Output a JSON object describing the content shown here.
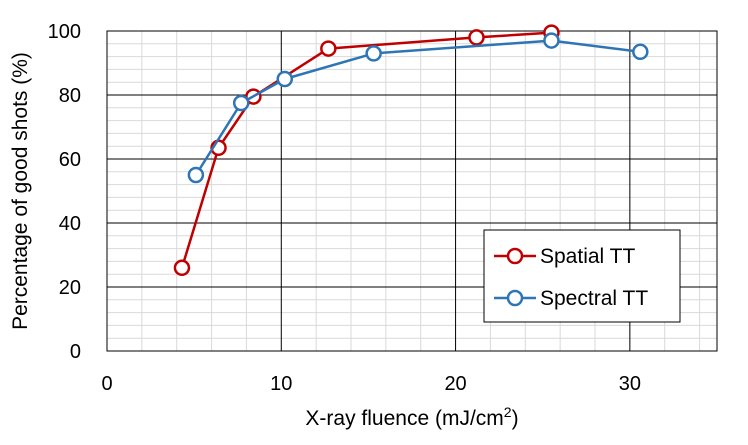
{
  "chart_data": {
    "type": "line",
    "xlabel": "X-ray fluence (mJ/cm2)",
    "xlabel_parts": {
      "main": "X-ray fluence (mJ/cm",
      "sup": "2",
      "end": ")"
    },
    "ylabel": "Percentage of good shots (%)",
    "xlim": [
      0,
      35
    ],
    "ylim": [
      0,
      100
    ],
    "xticks": [
      0,
      10,
      20,
      30
    ],
    "yticks": [
      0,
      20,
      40,
      60,
      80,
      100
    ],
    "grid": {
      "major": true,
      "minor": true
    },
    "legend_position": "bottom-right",
    "series": [
      {
        "name": "Spatial TT",
        "color": "#c00000",
        "points": [
          {
            "x": 4.3,
            "y": 26
          },
          {
            "x": 6.4,
            "y": 63.5
          },
          {
            "x": 8.4,
            "y": 79.5
          },
          {
            "x": 12.7,
            "y": 94.5
          },
          {
            "x": 21.2,
            "y": 98
          },
          {
            "x": 25.5,
            "y": 99.5
          }
        ]
      },
      {
        "name": "Spectral TT",
        "color": "#2e75b6",
        "points": [
          {
            "x": 5.1,
            "y": 55
          },
          {
            "x": 7.7,
            "y": 77.5
          },
          {
            "x": 10.2,
            "y": 85
          },
          {
            "x": 15.3,
            "y": 93
          },
          {
            "x": 25.5,
            "y": 97
          },
          {
            "x": 30.6,
            "y": 93.5
          }
        ]
      }
    ]
  }
}
